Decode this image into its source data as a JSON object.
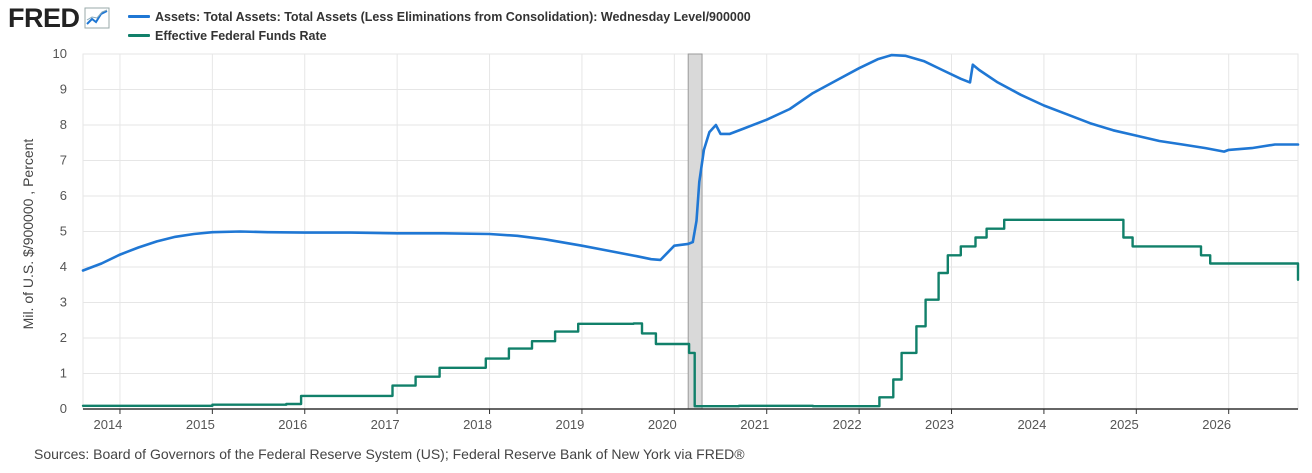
{
  "logo": {
    "text": "FRED",
    "icon": "chart-line-icon"
  },
  "colors": {
    "assets": "#1f77d4",
    "fedfunds": "#11806a",
    "recession": "#d9d9d9",
    "grid": "#e6e6e6",
    "axis": "#333333"
  },
  "source": "Sources: Board of Governors of the Federal Reserve System (US); Federal Reserve Bank of New York via FRED®",
  "chart_data": {
    "type": "line",
    "title": "",
    "xlabel": "",
    "ylabel": "Mil. of U.S. $/900000 , Percent",
    "xlim": [
      2013.6,
      2026.75
    ],
    "ylim": [
      0,
      10
    ],
    "yticks": [
      0,
      1,
      2,
      3,
      4,
      5,
      6,
      7,
      8,
      9,
      10
    ],
    "xticks": [
      "2014",
      "2015",
      "2016",
      "2017",
      "2018",
      "2019",
      "2020",
      "2021",
      "2022",
      "2023",
      "2024",
      "2025",
      "2026"
    ],
    "grid": true,
    "legend_position": "top-left",
    "recession": [
      2020.15,
      2020.3
    ],
    "series": [
      {
        "name": "Assets: Total Assets: Total Assets (Less Eliminations from Consolidation): Wednesday Level/900000",
        "color": "#1f77d4",
        "x": [
          2013.6,
          2013.8,
          2014.0,
          2014.2,
          2014.4,
          2014.6,
          2014.8,
          2015.0,
          2015.3,
          2015.6,
          2016.0,
          2016.5,
          2017.0,
          2017.5,
          2018.0,
          2018.3,
          2018.6,
          2019.0,
          2019.3,
          2019.6,
          2019.75,
          2019.85,
          2020.0,
          2020.15,
          2020.2,
          2020.24,
          2020.27,
          2020.32,
          2020.38,
          2020.45,
          2020.5,
          2020.6,
          2020.75,
          2021.0,
          2021.25,
          2021.5,
          2021.75,
          2022.0,
          2022.2,
          2022.35,
          2022.5,
          2022.7,
          2022.9,
          2023.1,
          2023.2,
          2023.23,
          2023.3,
          2023.5,
          2023.75,
          2024.0,
          2024.25,
          2024.5,
          2024.75,
          2025.0,
          2025.25,
          2025.5,
          2025.75,
          2025.95,
          2026.0,
          2026.25,
          2026.5,
          2026.75
        ],
        "values": [
          3.9,
          4.1,
          4.35,
          4.55,
          4.72,
          4.85,
          4.93,
          4.98,
          5.0,
          4.98,
          4.97,
          4.97,
          4.95,
          4.95,
          4.93,
          4.88,
          4.78,
          4.6,
          4.45,
          4.3,
          4.22,
          4.2,
          4.6,
          4.65,
          4.7,
          5.3,
          6.4,
          7.3,
          7.8,
          8.0,
          7.75,
          7.75,
          7.9,
          8.15,
          8.45,
          8.9,
          9.25,
          9.6,
          9.85,
          9.97,
          9.95,
          9.8,
          9.55,
          9.3,
          9.2,
          9.7,
          9.55,
          9.2,
          8.85,
          8.55,
          8.3,
          8.05,
          7.85,
          7.7,
          7.55,
          7.45,
          7.35,
          7.25,
          7.3,
          7.35,
          7.45,
          7.45
        ]
      },
      {
        "name": "Effective Federal Funds Rate",
        "color": "#11806a",
        "step": true,
        "x": [
          2013.6,
          2014.3,
          2015.0,
          2015.8,
          2015.96,
          2016.95,
          2017.2,
          2017.46,
          2017.96,
          2018.21,
          2018.46,
          2018.71,
          2018.96,
          2019.56,
          2019.65,
          2019.8,
          2020.16,
          2020.22,
          2020.7,
          2021.5,
          2022.22,
          2022.37,
          2022.46,
          2022.62,
          2022.72,
          2022.86,
          2022.96,
          2023.1,
          2023.26,
          2023.38,
          2023.57,
          2024.71,
          2024.86,
          2024.96,
          2025.7,
          2025.8,
          2026.75
        ],
        "values": [
          0.09,
          0.09,
          0.12,
          0.14,
          0.37,
          0.66,
          0.91,
          1.16,
          1.42,
          1.7,
          1.91,
          2.18,
          2.4,
          2.41,
          2.13,
          1.83,
          1.58,
          0.08,
          0.09,
          0.08,
          0.33,
          0.83,
          1.58,
          2.33,
          3.08,
          3.83,
          4.33,
          4.58,
          4.83,
          5.08,
          5.33,
          5.33,
          4.83,
          4.58,
          4.33,
          4.1,
          3.64
        ]
      }
    ]
  }
}
